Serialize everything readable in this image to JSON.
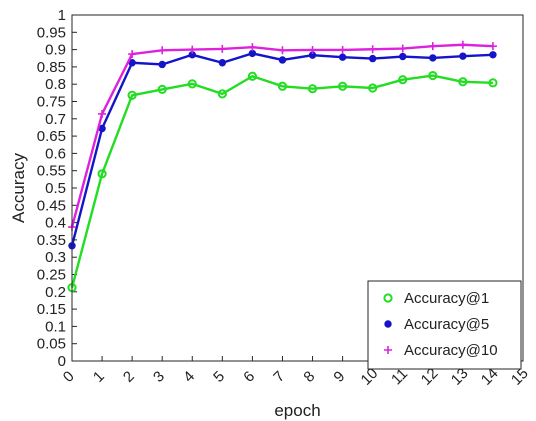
{
  "chart_data": {
    "type": "line",
    "title": "",
    "xlabel": "epoch",
    "ylabel": "Accuracy",
    "xlim": [
      0,
      15
    ],
    "ylim": [
      0,
      1
    ],
    "x_ticks": [
      "0",
      "1",
      "2",
      "3",
      "4",
      "5",
      "6",
      "7",
      "8",
      "9",
      "10",
      "11",
      "12",
      "13",
      "14",
      "15"
    ],
    "y_ticks": [
      "0",
      "0.05",
      "0.1",
      "0.15",
      "0.2",
      "0.25",
      "0.3",
      "0.35",
      "0.4",
      "0.45",
      "0.5",
      "0.55",
      "0.6",
      "0.65",
      "0.7",
      "0.75",
      "0.8",
      "0.85",
      "0.9",
      "0.95",
      "1"
    ],
    "grid": false,
    "legend_position": "bottom-right",
    "x": [
      0,
      1,
      2,
      3,
      4,
      5,
      6,
      7,
      8,
      9,
      10,
      11,
      12,
      13,
      14
    ],
    "series": [
      {
        "name": "Accuracy@1",
        "color": "#22dd22",
        "marker": "circle-open",
        "values": [
          0.212,
          0.541,
          0.768,
          0.785,
          0.801,
          0.772,
          0.823,
          0.794,
          0.787,
          0.794,
          0.789,
          0.813,
          0.825,
          0.807,
          0.804
        ]
      },
      {
        "name": "Accuracy@5",
        "color": "#1414c8",
        "marker": "circle-filled",
        "values": [
          0.333,
          0.672,
          0.862,
          0.857,
          0.885,
          0.862,
          0.889,
          0.87,
          0.884,
          0.878,
          0.874,
          0.88,
          0.876,
          0.881,
          0.885
        ]
      },
      {
        "name": "Accuracy@10",
        "color": "#dd22dd",
        "marker": "plus",
        "values": [
          0.387,
          0.714,
          0.887,
          0.898,
          0.9,
          0.902,
          0.907,
          0.898,
          0.899,
          0.899,
          0.901,
          0.903,
          0.91,
          0.914,
          0.91
        ]
      }
    ]
  }
}
